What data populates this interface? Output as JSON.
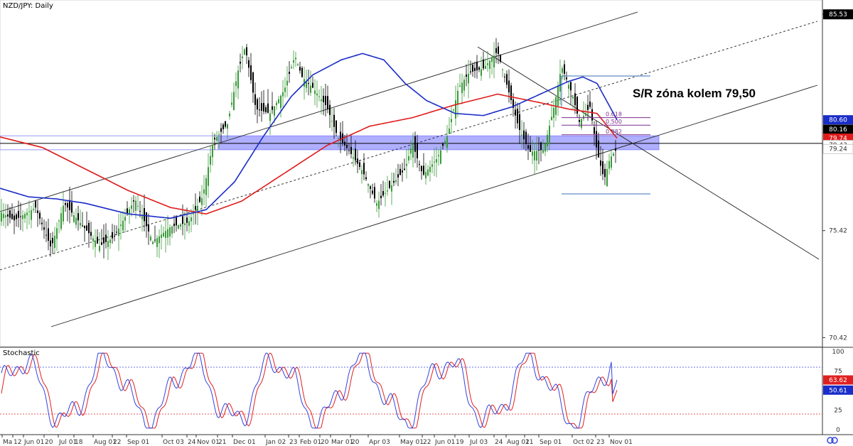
{
  "title": "NZD/JPY: Daily",
  "indicator_title": "Stochastic",
  "annotation": "S/R zóna kolem 79,50",
  "colors": {
    "up": "#3a9a3a",
    "down": "#000000",
    "sma_fast": "#1a2dc8",
    "sma_slow": "#e01b1b",
    "zone": "#6e6eff",
    "fib": "#7b2f8f",
    "retr_box": "#3b6fb6",
    "stoch_k": "#3344dd",
    "stoch_d": "#e02020"
  },
  "price_axis": {
    "labels": [
      "85.53",
      "75.42",
      "70.42"
    ]
  },
  "price_tags": [
    {
      "label": "80.60",
      "value": 80.6,
      "color": "#1a2dc8"
    },
    {
      "label": "80.16",
      "value": 80.16,
      "color": "#000000"
    },
    {
      "label": "79.74",
      "value": 79.74,
      "color": "#e01b1b"
    },
    {
      "label": "79.43",
      "value": 79.43,
      "color": "#ffffff"
    },
    {
      "label": "79.24",
      "value": 79.24,
      "color": "#ffffff"
    }
  ],
  "stoch_axis": {
    "labels": [
      "100",
      "75",
      "25",
      "0"
    ]
  },
  "stoch_tags": [
    {
      "label": "63.62",
      "value": 63.62,
      "color": "#e02020"
    },
    {
      "label": "50.61",
      "value": 50.61,
      "color": "#1a2dc8"
    }
  ],
  "fib_labels": [
    "0.618",
    "0.500",
    "0.382"
  ],
  "x_ticks": [
    "Ma",
    "12",
    "Jun 01",
    "20",
    "Jul 01",
    "18",
    "Aug 01",
    "22",
    "Sep 01",
    "Oct 03",
    "24",
    "Nov 01",
    "21",
    "Dec 01",
    "Jan 02",
    "23",
    "Feb 01",
    "20",
    "Mar 01",
    "20",
    "Apr 03",
    "May 01",
    "22",
    "Jun 01",
    "19",
    "Jul 03",
    "24",
    "Aug 01",
    "21",
    "Sep 01",
    "Oct 02",
    "23",
    "Nov 01"
  ],
  "chart_data": {
    "type": "candlestick",
    "symbol": "NZD/JPY",
    "timeframe": "Daily",
    "ylim": [
      70.0,
      86.2
    ],
    "key_level": 79.5,
    "zone": [
      79.2,
      79.85
    ],
    "fib_levels": {
      "0.618": 80.7,
      "0.500": 80.35,
      "0.382": 79.9
    },
    "series": [
      {
        "name": "price_path",
        "points": [
          [
            0,
            76.3
          ],
          [
            20,
            75.9
          ],
          [
            50,
            76.5
          ],
          [
            72,
            74.6
          ],
          [
            90,
            76.7
          ],
          [
            110,
            75.9
          ],
          [
            140,
            74.7
          ],
          [
            160,
            75.1
          ],
          [
            190,
            76.9
          ],
          [
            215,
            74.9
          ],
          [
            240,
            75.6
          ],
          [
            265,
            75.8
          ],
          [
            285,
            77.0
          ],
          [
            300,
            79.6
          ],
          [
            320,
            80.4
          ],
          [
            335,
            82.9
          ],
          [
            345,
            84.0
          ],
          [
            360,
            81.1
          ],
          [
            380,
            80.9
          ],
          [
            400,
            82.0
          ],
          [
            415,
            83.6
          ],
          [
            425,
            82.6
          ],
          [
            440,
            82.1
          ],
          [
            460,
            81.2
          ],
          [
            475,
            79.8
          ],
          [
            490,
            79.2
          ],
          [
            510,
            78.2
          ],
          [
            530,
            76.7
          ],
          [
            550,
            77.5
          ],
          [
            570,
            78.3
          ],
          [
            580,
            79.5
          ],
          [
            595,
            78.0
          ],
          [
            615,
            78.8
          ],
          [
            630,
            79.9
          ],
          [
            645,
            82.1
          ],
          [
            660,
            82.8
          ],
          [
            680,
            83.0
          ],
          [
            700,
            83.8
          ],
          [
            715,
            82.0
          ],
          [
            730,
            80.2
          ],
          [
            745,
            79.1
          ],
          [
            765,
            79.2
          ],
          [
            780,
            81.3
          ],
          [
            790,
            83.1
          ],
          [
            805,
            81.8
          ],
          [
            815,
            80.5
          ],
          [
            830,
            81.2
          ],
          [
            840,
            79.1
          ],
          [
            850,
            77.8
          ],
          [
            858,
            78.8
          ],
          [
            868,
            79.24
          ]
        ]
      },
      {
        "name": "sma_fast",
        "points": [
          [
            0,
            77.4
          ],
          [
            40,
            77.0
          ],
          [
            80,
            76.9
          ],
          [
            120,
            76.7
          ],
          [
            180,
            76.2
          ],
          [
            240,
            76.0
          ],
          [
            290,
            76.4
          ],
          [
            330,
            77.7
          ],
          [
            370,
            79.8
          ],
          [
            410,
            81.7
          ],
          [
            440,
            82.7
          ],
          [
            480,
            83.4
          ],
          [
            510,
            83.7
          ],
          [
            540,
            83.4
          ],
          [
            570,
            82.3
          ],
          [
            600,
            81.5
          ],
          [
            640,
            80.9
          ],
          [
            680,
            80.8
          ],
          [
            720,
            81.2
          ],
          [
            760,
            81.8
          ],
          [
            800,
            82.4
          ],
          [
            820,
            82.6
          ],
          [
            840,
            82.3
          ],
          [
            868,
            80.6
          ]
        ]
      },
      {
        "name": "sma_slow",
        "points": [
          [
            0,
            79.8
          ],
          [
            60,
            79.3
          ],
          [
            120,
            78.3
          ],
          [
            180,
            77.3
          ],
          [
            240,
            76.5
          ],
          [
            290,
            76.2
          ],
          [
            340,
            76.8
          ],
          [
            400,
            78.1
          ],
          [
            460,
            79.4
          ],
          [
            520,
            80.3
          ],
          [
            580,
            80.7
          ],
          [
            640,
            81.3
          ],
          [
            700,
            81.8
          ],
          [
            760,
            81.4
          ],
          [
            800,
            81.1
          ],
          [
            840,
            80.9
          ],
          [
            868,
            79.74
          ]
        ]
      }
    ],
    "stochastic": {
      "ylim": [
        0,
        100
      ],
      "overbought": 80,
      "oversold": 20,
      "k_last": 63.62,
      "d_last": 50.61
    }
  }
}
